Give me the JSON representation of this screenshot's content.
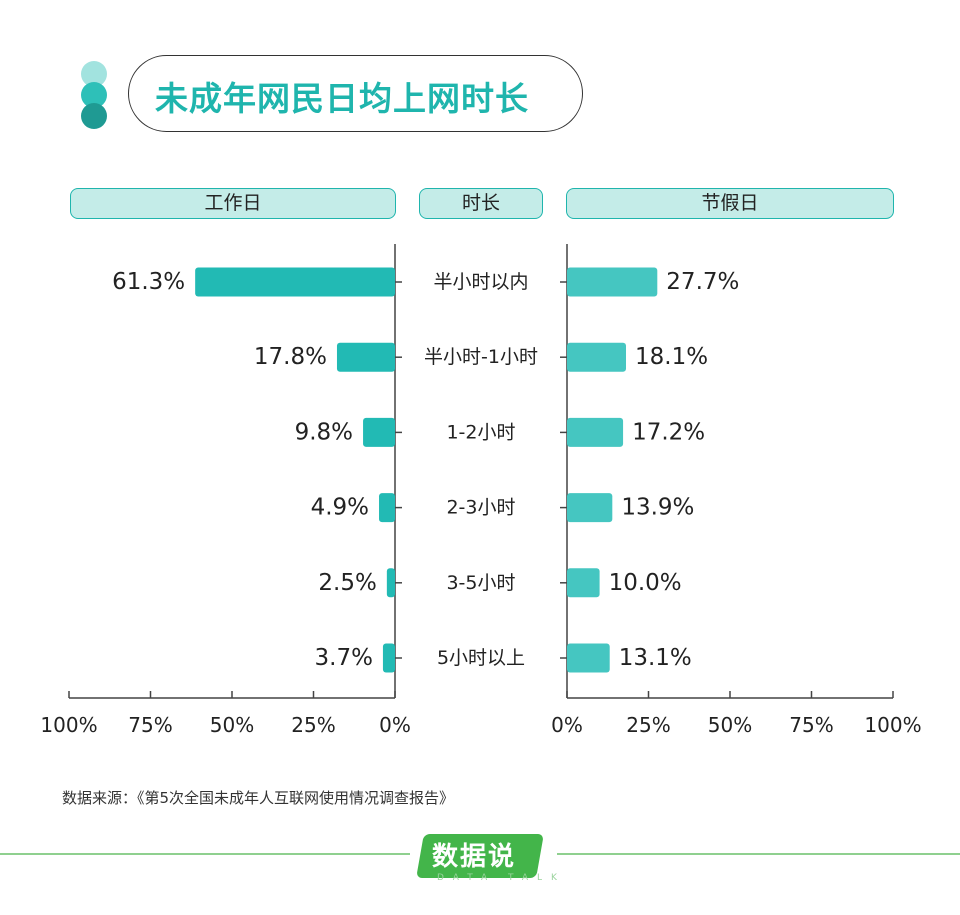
{
  "title": "未成年网民日均上网时长",
  "colors": {
    "accent": "#1fb5ad",
    "bar_workday": "#22bab4",
    "bar_holiday": "#45c6c1",
    "header_fill": "#c4ece8",
    "dot_light": "#a2e3df",
    "dot_mid": "#2ec0b8",
    "dot_dark": "#1f9a93",
    "logo_green": "#43b54a",
    "footer_line": "#8fd08f"
  },
  "headers": {
    "left": "工作日",
    "center": "时长",
    "right": "节假日"
  },
  "chart_data": {
    "type": "bar",
    "orientation": "horizontal-butterfly",
    "categories": [
      "半小时以内",
      "半小时-1小时",
      "1-2小时",
      "2-3小时",
      "3-5小时",
      "5小时以上"
    ],
    "series": [
      {
        "name": "工作日",
        "values": [
          61.3,
          17.8,
          9.8,
          4.9,
          2.5,
          3.7
        ],
        "labels": [
          "61.3%",
          "17.8%",
          "9.8%",
          "4.9%",
          "2.5%",
          "3.7%"
        ]
      },
      {
        "name": "节假日",
        "values": [
          27.7,
          18.1,
          17.2,
          13.9,
          10.0,
          13.1
        ],
        "labels": [
          "27.7%",
          "18.1%",
          "17.2%",
          "13.9%",
          "10.0%",
          "13.1%"
        ]
      }
    ],
    "xlim": [
      0,
      100
    ],
    "left_ticks": [
      "100%",
      "75%",
      "50%",
      "25%",
      "0%"
    ],
    "right_ticks": [
      "0%",
      "25%",
      "50%",
      "75%",
      "100%"
    ],
    "grid": false
  },
  "source": "数据来源：《第5次全国未成年人互联网使用情况调查报告》",
  "logo": {
    "text": "数据说",
    "subtext": "DATA TALK"
  }
}
